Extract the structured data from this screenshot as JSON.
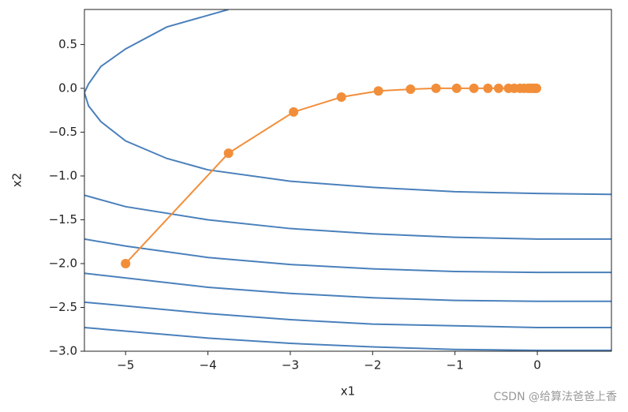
{
  "chart_data": {
    "type": "line",
    "xlabel": "x1",
    "ylabel": "x2",
    "xlim": [
      -5.5,
      0.9
    ],
    "ylim": [
      -3.0,
      0.9
    ],
    "xticks": [
      {
        "value": -5,
        "label": "−5"
      },
      {
        "value": -4,
        "label": "−4"
      },
      {
        "value": -3,
        "label": "−3"
      },
      {
        "value": -2,
        "label": "−2"
      },
      {
        "value": -1,
        "label": "−1"
      },
      0
    ],
    "yticks": [
      {
        "value": -3.0,
        "label": "−3.0"
      },
      {
        "value": -2.5,
        "label": "−2.5"
      },
      {
        "value": -2.0,
        "label": "−2.0"
      },
      {
        "value": -1.5,
        "label": "−1.5"
      },
      {
        "value": -1.0,
        "label": "−1.0"
      },
      {
        "value": -0.5,
        "label": "−0.5"
      },
      {
        "value": 0.0,
        "label": "0.0"
      },
      0.5
    ],
    "series": [
      {
        "color": "#4a80bb",
        "marker": false,
        "x": [
          -3.75,
          -4.5,
          -5,
          -5.3,
          -5.45,
          -5.5,
          -5.45,
          -5.3,
          -5,
          -4.5,
          -4,
          -3,
          -2,
          -1,
          0,
          0.9
        ],
        "values": [
          0.9,
          0.7,
          0.45,
          0.25,
          0.05,
          -0.05,
          -0.2,
          -0.38,
          -0.6,
          -0.8,
          -0.93,
          -1.06,
          -1.13,
          -1.18,
          -1.2,
          -1.21
        ]
      },
      {
        "color": "#4a80bb",
        "marker": false,
        "x": [
          -5.5,
          -5,
          -4,
          -3,
          -2,
          -1,
          0,
          0.9
        ],
        "values": [
          -1.22,
          -1.35,
          -1.5,
          -1.6,
          -1.66,
          -1.7,
          -1.72,
          -1.72
        ]
      },
      {
        "color": "#4a80bb",
        "marker": false,
        "x": [
          -5.5,
          -5,
          -4,
          -3,
          -2,
          -1,
          0,
          0.9
        ],
        "values": [
          -1.72,
          -1.8,
          -1.93,
          -2.01,
          -2.06,
          -2.09,
          -2.1,
          -2.1
        ]
      },
      {
        "color": "#4a80bb",
        "marker": false,
        "x": [
          -5.5,
          -4,
          -3,
          -2,
          -1,
          0,
          0.9
        ],
        "values": [
          -2.11,
          -2.27,
          -2.34,
          -2.39,
          -2.42,
          -2.43,
          -2.43
        ]
      },
      {
        "color": "#4a80bb",
        "marker": false,
        "x": [
          -5.5,
          -4,
          -3,
          -2,
          -1,
          0,
          0.9
        ],
        "values": [
          -2.44,
          -2.57,
          -2.64,
          -2.69,
          -2.71,
          -2.73,
          -2.73
        ]
      },
      {
        "color": "#4a80bb",
        "marker": false,
        "x": [
          -5.5,
          -4,
          -3,
          -2,
          -1,
          0,
          0.9
        ],
        "values": [
          -2.73,
          -2.85,
          -2.91,
          -2.95,
          -2.98,
          -2.99,
          -2.99
        ]
      },
      {
        "color": "#f28e3a",
        "marker": true,
        "x": [
          -5,
          -3.75,
          -2.96,
          -2.38,
          -1.93,
          -1.54,
          -1.23,
          -0.98,
          -0.77,
          -0.6,
          -0.47,
          -0.35,
          -0.28,
          -0.21,
          -0.16,
          -0.11,
          -0.09,
          -0.06,
          -0.04,
          -0.02,
          -0.01
        ],
        "values": [
          -2,
          -0.74,
          -0.27,
          -0.1,
          -0.03,
          -0.01,
          0,
          0,
          0,
          0,
          0,
          0,
          0,
          0,
          0,
          0,
          0,
          0,
          0,
          0,
          0
        ]
      }
    ]
  },
  "watermark": "CSDN @给算法爸爸上香"
}
